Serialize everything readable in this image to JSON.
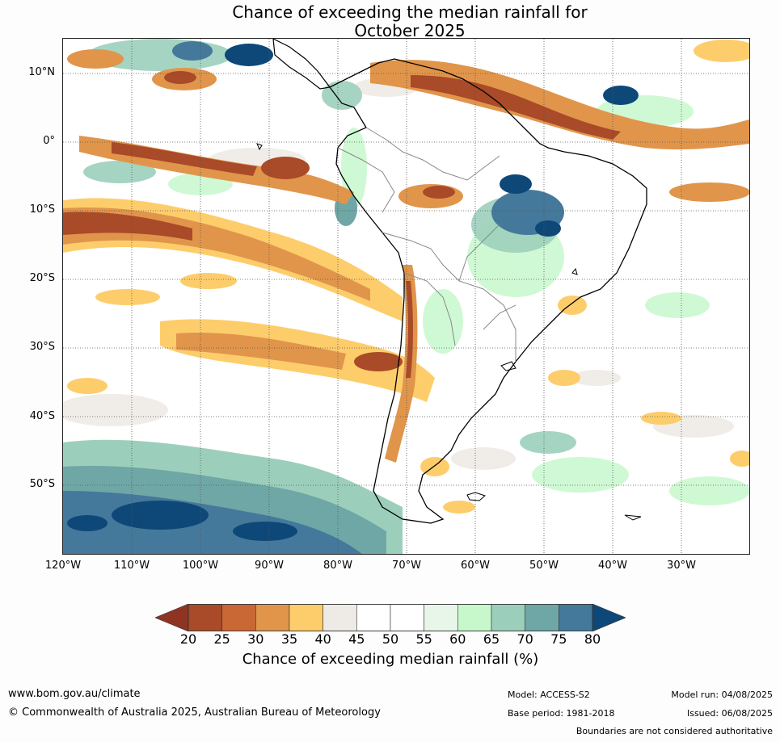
{
  "title": {
    "line1": "Chance of exceeding the median rainfall for",
    "line2": "October 2025"
  },
  "map": {
    "region": "South America and surrounding oceans",
    "lat_labels": [
      "10°N",
      "0°",
      "10°S",
      "20°S",
      "30°S",
      "40°S",
      "50°S"
    ],
    "lon_labels": [
      "120°W",
      "110°W",
      "100°W",
      "90°W",
      "80°W",
      "70°W",
      "60°W",
      "50°W",
      "40°W",
      "30°W"
    ],
    "lat_range": [
      15,
      -60
    ],
    "lon_range": [
      -120,
      -20
    ],
    "gridlines": "dotted",
    "land_outline_color": "#000000",
    "border_color": "#888888"
  },
  "colorbar": {
    "label": "Chance of exceeding median rainfall (%)",
    "ticks": [
      "20",
      "25",
      "30",
      "35",
      "40",
      "45",
      "50",
      "55",
      "60",
      "65",
      "70",
      "75",
      "80"
    ],
    "below_color": "#8f3423",
    "above_color": "#0e4878",
    "colors": [
      "#a94a28",
      "#c96735",
      "#e0954b",
      "#fdcd6b",
      "#eeebe6",
      "#ffffff",
      "#ffffff",
      "#e8f6ea",
      "#c7f8cc",
      "#9ccfbb",
      "#6fa7a6",
      "#44799b"
    ]
  },
  "footer": {
    "url": "www.bom.gov.au/climate",
    "copyright": "© Commonwealth of Australia 2025, Australian Bureau of Meteorology",
    "model": "Model: ACCESS-S2",
    "base_period": "Base period: 1981-2018",
    "model_run": "Model run: 04/08/2025",
    "issued": "Issued: 06/08/2025",
    "disclaimer": "Boundaries are not considered authoritative"
  }
}
